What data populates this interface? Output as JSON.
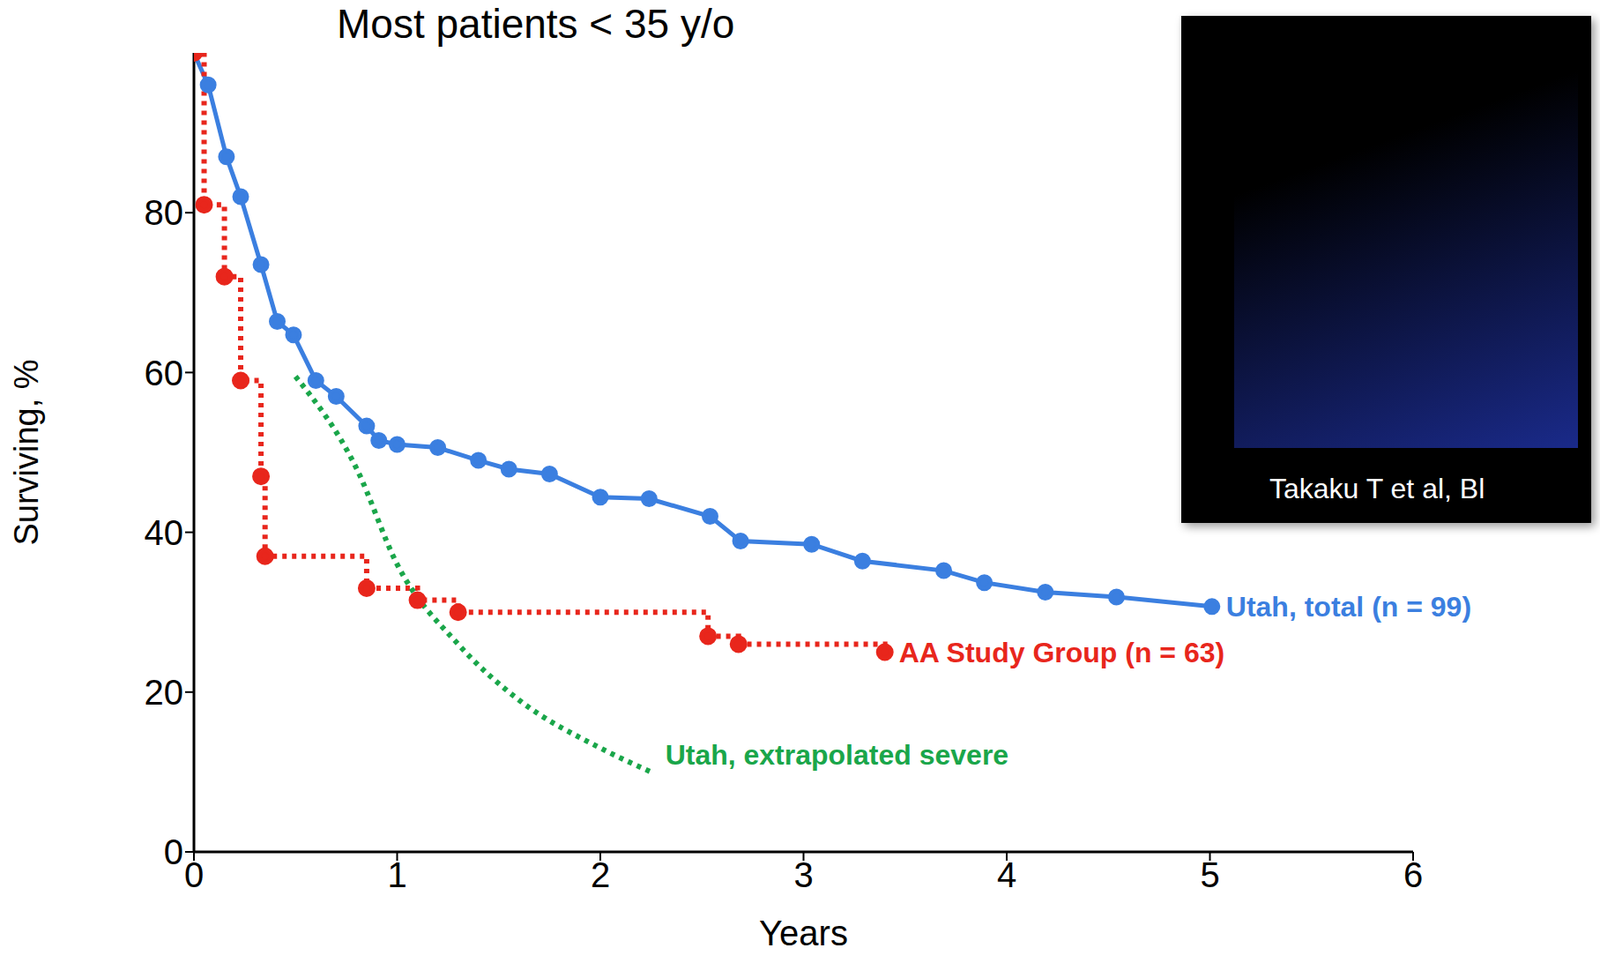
{
  "chart_data": {
    "type": "line",
    "title": "Most patients < 35 y/o",
    "x_label": "Years",
    "y_label": "Surviving, %",
    "xlim": [
      0,
      6
    ],
    "xticks": [
      0,
      1,
      2,
      3,
      4,
      5,
      6
    ],
    "ylim": [
      0,
      100
    ],
    "yticks": [
      0,
      20,
      40,
      60,
      80
    ],
    "grid": false,
    "annotations": [
      "Takaku T et al, Bl"
    ],
    "series": [
      {
        "name": "Utah, total (n = 99)",
        "color": "#3b7fe0",
        "type": "line",
        "marker": "circle",
        "line_style": "solid",
        "x": [
          0,
          0.07,
          0.16,
          0.23,
          0.33,
          0.41,
          0.49,
          0.6,
          0.7,
          0.85,
          0.91,
          1.0,
          1.2,
          1.4,
          1.55,
          1.75,
          2.0,
          2.24,
          2.54,
          2.69,
          3.04,
          3.29,
          3.69,
          3.89,
          4.19,
          4.54,
          5.01
        ],
        "values": [
          100,
          96,
          87,
          82,
          73.5,
          66.4,
          64.7,
          59,
          57,
          53.3,
          51.5,
          51,
          50.6,
          49,
          47.9,
          47.3,
          44.4,
          44.2,
          42,
          38.9,
          38.5,
          36.4,
          35.2,
          33.7,
          32.5,
          31.9,
          30.7
        ]
      },
      {
        "name": "AA Study Group (n = 63)",
        "color": "#e8261c",
        "type": "step",
        "marker": "circle",
        "line_style": "dotted",
        "x": [
          0,
          0.05,
          0.15,
          0.23,
          0.33,
          0.35,
          0.85,
          1.1,
          1.3,
          2.53,
          2.68,
          3.4
        ],
        "values": [
          100,
          81,
          72,
          59,
          47,
          37,
          33,
          31.5,
          30,
          27,
          26,
          25
        ]
      },
      {
        "name": "Utah, extrapolated severe",
        "color": "#1aa64a",
        "type": "line",
        "marker": "none",
        "line_style": "dotted",
        "x": [
          0.5,
          0.8,
          1.0,
          1.3,
          1.6,
          2.0,
          2.25
        ],
        "values": [
          59.5,
          48,
          36,
          26,
          19,
          13,
          10
        ]
      }
    ]
  }
}
